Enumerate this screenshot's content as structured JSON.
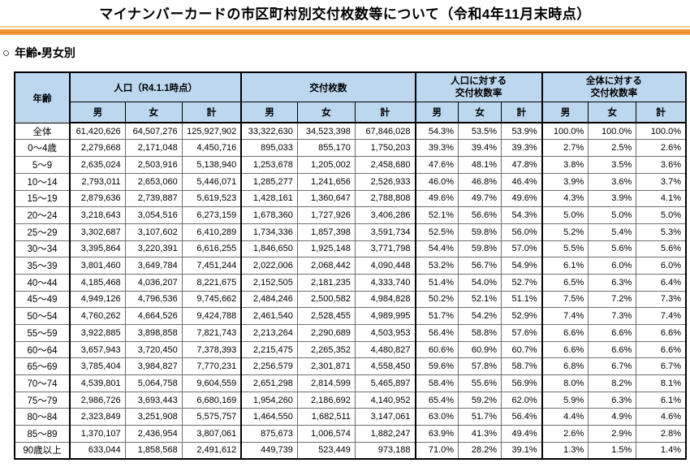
{
  "page": {
    "title": "マイナンバーカードの市区町村別交付枚数等について（令和4年11月末時点）",
    "section_marker": "○",
    "section_heading": "年齢・男女別"
  },
  "colors": {
    "accent_orange": "#ee8a26",
    "accent_orange_light": "#fbc98c",
    "header_blue": "#bdd7ee",
    "border_dark": "#000000"
  },
  "table": {
    "age_header": "年齢",
    "groups": [
      {
        "label": "人口（R4.1.1時点）"
      },
      {
        "label": "交付枚数"
      },
      {
        "label": "人口に対する\n交付枚数率"
      },
      {
        "label": "全体に対する\n交付枚数率"
      }
    ],
    "sub_headers": [
      "男",
      "女",
      "計"
    ],
    "rows": [
      [
        "全体",
        "61,420,626",
        "64,507,276",
        "125,927,902",
        "33,322,630",
        "34,523,398",
        "67,846,028",
        "54.3%",
        "53.5%",
        "53.9%",
        "100.0%",
        "100.0%",
        "100.0%"
      ],
      [
        "0～4歳",
        "2,279,668",
        "2,171,048",
        "4,450,716",
        "895,033",
        "855,170",
        "1,750,203",
        "39.3%",
        "39.4%",
        "39.3%",
        "2.7%",
        "2.5%",
        "2.6%"
      ],
      [
        "5～9",
        "2,635,024",
        "2,503,916",
        "5,138,940",
        "1,253,678",
        "1,205,002",
        "2,458,680",
        "47.6%",
        "48.1%",
        "47.8%",
        "3.8%",
        "3.5%",
        "3.6%"
      ],
      [
        "10～14",
        "2,793,011",
        "2,653,060",
        "5,446,071",
        "1,285,277",
        "1,241,656",
        "2,526,933",
        "46.0%",
        "46.8%",
        "46.4%",
        "3.9%",
        "3.6%",
        "3.7%"
      ],
      [
        "15～19",
        "2,879,636",
        "2,739,887",
        "5,619,523",
        "1,428,161",
        "1,360,647",
        "2,788,808",
        "49.6%",
        "49.7%",
        "49.6%",
        "4.3%",
        "3.9%",
        "4.1%"
      ],
      [
        "20～24",
        "3,218,643",
        "3,054,516",
        "6,273,159",
        "1,678,360",
        "1,727,926",
        "3,406,286",
        "52.1%",
        "56.6%",
        "54.3%",
        "5.0%",
        "5.0%",
        "5.0%"
      ],
      [
        "25～29",
        "3,302,687",
        "3,107,602",
        "6,410,289",
        "1,734,336",
        "1,857,398",
        "3,591,734",
        "52.5%",
        "59.8%",
        "56.0%",
        "5.2%",
        "5.4%",
        "5.3%"
      ],
      [
        "30～34",
        "3,395,864",
        "3,220,391",
        "6,616,255",
        "1,846,650",
        "1,925,148",
        "3,771,798",
        "54.4%",
        "59.8%",
        "57.0%",
        "5.5%",
        "5.6%",
        "5.6%"
      ],
      [
        "35～39",
        "3,801,460",
        "3,649,784",
        "7,451,244",
        "2,022,006",
        "2,068,442",
        "4,090,448",
        "53.2%",
        "56.7%",
        "54.9%",
        "6.1%",
        "6.0%",
        "6.0%"
      ],
      [
        "40～44",
        "4,185,468",
        "4,036,207",
        "8,221,675",
        "2,152,505",
        "2,181,235",
        "4,333,740",
        "51.4%",
        "54.0%",
        "52.7%",
        "6.5%",
        "6.3%",
        "6.4%"
      ],
      [
        "45～49",
        "4,949,126",
        "4,796,536",
        "9,745,662",
        "2,484,246",
        "2,500,582",
        "4,984,828",
        "50.2%",
        "52.1%",
        "51.1%",
        "7.5%",
        "7.2%",
        "7.3%"
      ],
      [
        "50～54",
        "4,760,262",
        "4,664,526",
        "9,424,788",
        "2,461,540",
        "2,528,455",
        "4,989,995",
        "51.7%",
        "54.2%",
        "52.9%",
        "7.4%",
        "7.3%",
        "7.4%"
      ],
      [
        "55～59",
        "3,922,885",
        "3,898,858",
        "7,821,743",
        "2,213,264",
        "2,290,689",
        "4,503,953",
        "56.4%",
        "58.8%",
        "57.6%",
        "6.6%",
        "6.6%",
        "6.6%"
      ],
      [
        "60～64",
        "3,657,943",
        "3,720,450",
        "7,378,393",
        "2,215,475",
        "2,265,352",
        "4,480,827",
        "60.6%",
        "60.9%",
        "60.7%",
        "6.6%",
        "6.6%",
        "6.6%"
      ],
      [
        "65～69",
        "3,785,404",
        "3,984,827",
        "7,770,231",
        "2,256,579",
        "2,301,871",
        "4,558,450",
        "59.6%",
        "57.8%",
        "58.7%",
        "6.8%",
        "6.7%",
        "6.7%"
      ],
      [
        "70～74",
        "4,539,801",
        "5,064,758",
        "9,604,559",
        "2,651,298",
        "2,814,599",
        "5,465,897",
        "58.4%",
        "55.6%",
        "56.9%",
        "8.0%",
        "8.2%",
        "8.1%"
      ],
      [
        "75～79",
        "2,986,726",
        "3,693,443",
        "6,680,169",
        "1,954,260",
        "2,186,692",
        "4,140,952",
        "65.4%",
        "59.2%",
        "62.0%",
        "5.9%",
        "6.3%",
        "6.1%"
      ],
      [
        "80～84",
        "2,323,849",
        "3,251,908",
        "5,575,757",
        "1,464,550",
        "1,682,511",
        "3,147,061",
        "63.0%",
        "51.7%",
        "56.4%",
        "4.4%",
        "4.9%",
        "4.6%"
      ],
      [
        "85～89",
        "1,370,107",
        "2,436,954",
        "3,807,061",
        "875,673",
        "1,006,574",
        "1,882,247",
        "63.9%",
        "41.3%",
        "49.4%",
        "2.6%",
        "2.9%",
        "2.8%"
      ],
      [
        "90歳以上",
        "633,044",
        "1,858,568",
        "2,491,612",
        "449,739",
        "523,449",
        "973,188",
        "71.0%",
        "28.2%",
        "39.1%",
        "1.3%",
        "1.5%",
        "1.4%"
      ]
    ]
  }
}
